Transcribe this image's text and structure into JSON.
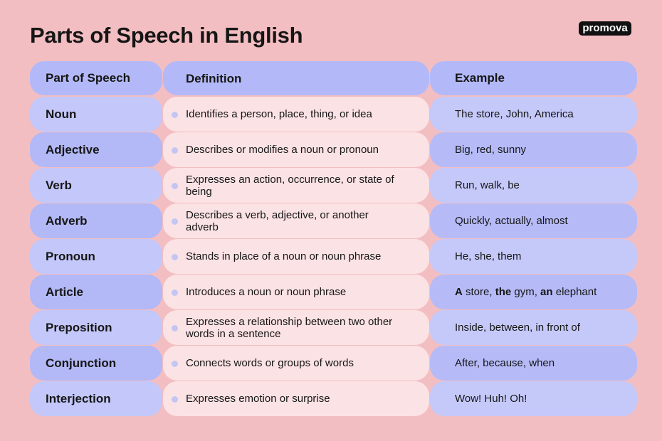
{
  "header": {
    "title": "Parts of Speech in English",
    "brand": "promova"
  },
  "table": {
    "columns": [
      "Part of Speech",
      "Definition",
      "Example"
    ],
    "rows": [
      {
        "part": "Noun",
        "definition": "Identifies a person, place, thing, or idea",
        "example": [
          {
            "text": "The store, John, America",
            "bold": false
          }
        ]
      },
      {
        "part": "Adjective",
        "definition": "Describes or modifies a noun or pronoun",
        "example": [
          {
            "text": "Big, red, sunny",
            "bold": false
          }
        ]
      },
      {
        "part": "Verb",
        "definition": "Expresses an action, occurrence, or state of being",
        "example": [
          {
            "text": "Run, walk, be",
            "bold": false
          }
        ]
      },
      {
        "part": "Adverb",
        "definition": "Describes a verb, adjective, or another adverb",
        "example": [
          {
            "text": "Quickly, actually, almost",
            "bold": false
          }
        ]
      },
      {
        "part": "Pronoun",
        "definition": "Stands in place of a noun or noun phrase",
        "example": [
          {
            "text": "He, she, them",
            "bold": false
          }
        ]
      },
      {
        "part": "Article",
        "definition": "Introduces a noun or noun phrase",
        "example": [
          {
            "text": "A",
            "bold": true
          },
          {
            "text": " store, ",
            "bold": false
          },
          {
            "text": "the",
            "bold": true
          },
          {
            "text": " gym, ",
            "bold": false
          },
          {
            "text": "an",
            "bold": true
          },
          {
            "text": " elephant",
            "bold": false
          }
        ]
      },
      {
        "part": "Preposition",
        "definition": "Expresses a relationship between two other words in a sentence",
        "example": [
          {
            "text": "Inside, between, in front of",
            "bold": false
          }
        ]
      },
      {
        "part": "Conjunction",
        "definition": "Connects words or groups of words",
        "example": [
          {
            "text": "After, because, when",
            "bold": false
          }
        ]
      },
      {
        "part": "Interjection",
        "definition": "Expresses emotion or surprise",
        "example": [
          {
            "text": "Wow! Huh! Oh!",
            "bold": false
          }
        ]
      }
    ]
  }
}
